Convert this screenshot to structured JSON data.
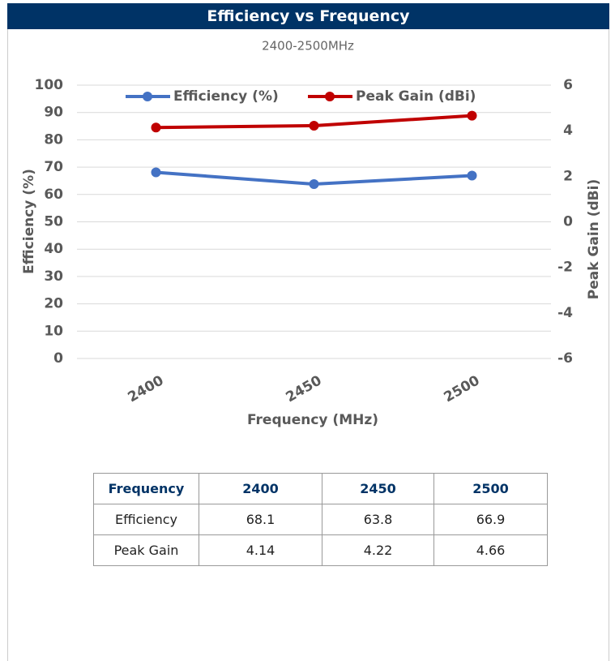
{
  "chart_data": {
    "type": "line",
    "title": "Efficiency vs Frequency",
    "subtitle": "2400-2500MHz",
    "x_label": "Frequency (MHz)",
    "y_label": "Efficiency (%)",
    "y2_label": "Peak Gain (dBi)",
    "categories": [
      "2400",
      "2450",
      "2500"
    ],
    "series": [
      {
        "name": "Efficiency (%)",
        "color": "#4472c4",
        "values": [
          68.1,
          63.8,
          66.9
        ]
      },
      {
        "name": "Peak Gain (dBi)",
        "color": "#c00000",
        "values": [
          4.14,
          4.22,
          4.66
        ],
        "axis": "y2"
      }
    ],
    "ylim": [
      0,
      100
    ],
    "yticks": [
      0,
      10,
      20,
      30,
      40,
      50,
      60,
      70,
      80,
      90,
      100
    ],
    "y2lim": [
      -6,
      6
    ],
    "y2ticks": [
      -6,
      -4,
      -2,
      0,
      2,
      4,
      6
    ],
    "grid": true
  },
  "table": {
    "header": [
      "Frequency",
      "2400",
      "2450",
      "2500"
    ],
    "rows": [
      [
        "Efficiency",
        "68.1",
        "63.8",
        "66.9"
      ],
      [
        "Peak Gain",
        "4.14",
        "4.22",
        "4.66"
      ]
    ]
  }
}
